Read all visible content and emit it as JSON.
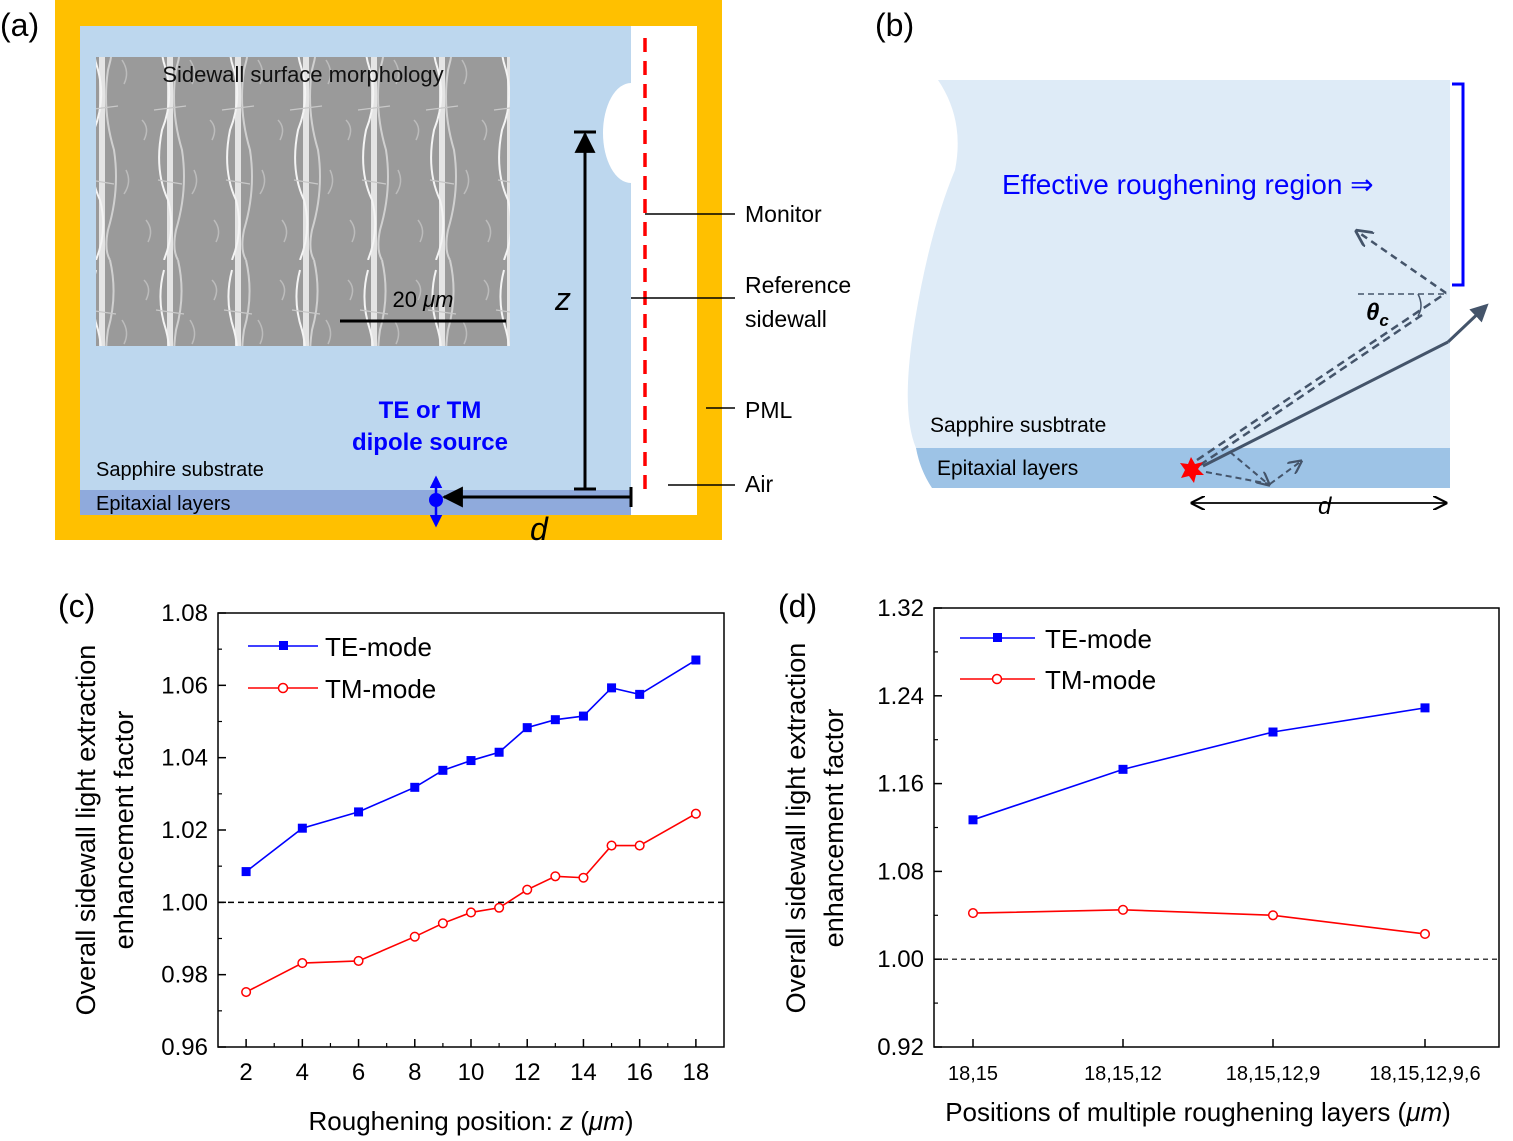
{
  "panels": {
    "a": {
      "label": "(a)",
      "inset_title": "Sidewall surface morphology",
      "scale_bar_prefix": "20 ",
      "scale_bar_unit": "μm",
      "z_label": "z",
      "d_label": "d",
      "source_line1": "TE or TM",
      "source_line2": "dipole source",
      "substrate": "Sapphire substrate",
      "epi": "Epitaxial layers",
      "callouts": [
        "Monitor",
        "Reference",
        "sidewall",
        "PML",
        "Air"
      ],
      "colors": {
        "pml": "#ffc000",
        "substrate": "#bdd7ee",
        "epi": "#8faadc",
        "monitor": "#ff0000",
        "source": "#0000ff"
      }
    },
    "b": {
      "label": "(b)",
      "region_text": "Effective roughening region ⇒",
      "theta": "θ",
      "theta_sub": "c",
      "substrate": "Sapphire susbtrate",
      "epi": "Epitaxial layers",
      "d_label": "d",
      "colors": {
        "substrate": "#deebf7",
        "epi": "#9dc3e6",
        "bracket": "#0000ff",
        "ray": "#44546a",
        "source": "#ff0000"
      }
    }
  },
  "chart_data": [
    {
      "panel_label": "(c)",
      "type": "line",
      "x": [
        2,
        4,
        6,
        8,
        9,
        10,
        11,
        12,
        13,
        14,
        15,
        16,
        18
      ],
      "x_ticks": [
        2,
        4,
        6,
        8,
        10,
        12,
        14,
        16,
        18
      ],
      "xlim": [
        1,
        19
      ],
      "ylim": [
        0.96,
        1.08
      ],
      "y_ticks": [
        "0.96",
        "0.98",
        "1.00",
        "1.02",
        "1.04",
        "1.06",
        "1.08"
      ],
      "xlabel_prefix": "Roughening position: ",
      "xlabel_var": "z",
      "xlabel_unit_open": " (",
      "xlabel_mu": "μm",
      "xlabel_unit_close": ")",
      "ylabel_line1": "Overall sidewall light extraction",
      "ylabel_line2": "enhancement factor",
      "reference_line": 1.0,
      "series": [
        {
          "name": "TE-mode",
          "color": "#0000ff",
          "marker": "square",
          "values": [
            1.0085,
            1.0205,
            1.025,
            1.0318,
            1.0365,
            1.0392,
            1.0415,
            1.0483,
            1.0505,
            1.0515,
            1.0593,
            1.0575,
            1.067
          ]
        },
        {
          "name": "TM-mode",
          "color": "#ff0000",
          "marker": "open-circle",
          "values": [
            0.9752,
            0.9832,
            0.9838,
            0.9905,
            0.9942,
            0.9972,
            0.9985,
            1.0035,
            1.0072,
            1.0068,
            1.0157,
            1.0157,
            1.0245
          ]
        }
      ]
    },
    {
      "panel_label": "(d)",
      "type": "line",
      "categories": [
        "18,15",
        "18,15,12",
        "18,15,12,9",
        "18,15,12,9,6"
      ],
      "ylim": [
        0.92,
        1.32
      ],
      "y_ticks": [
        "0.92",
        "1.00",
        "1.08",
        "1.16",
        "1.24",
        "1.32"
      ],
      "xlabel_prefix": "Positions of multiple roughening layers (",
      "xlabel_mu": "μm",
      "xlabel_unit_close": ")",
      "ylabel_line1": "Overall sidewall light extraction",
      "ylabel_line2": "enhancement factor",
      "reference_line": 1.0,
      "series": [
        {
          "name": "TE-mode",
          "color": "#0000ff",
          "marker": "square",
          "values": [
            1.127,
            1.173,
            1.207,
            1.229
          ]
        },
        {
          "name": "TM-mode",
          "color": "#ff0000",
          "marker": "open-circle",
          "values": [
            1.042,
            1.045,
            1.04,
            1.023
          ]
        }
      ]
    }
  ]
}
